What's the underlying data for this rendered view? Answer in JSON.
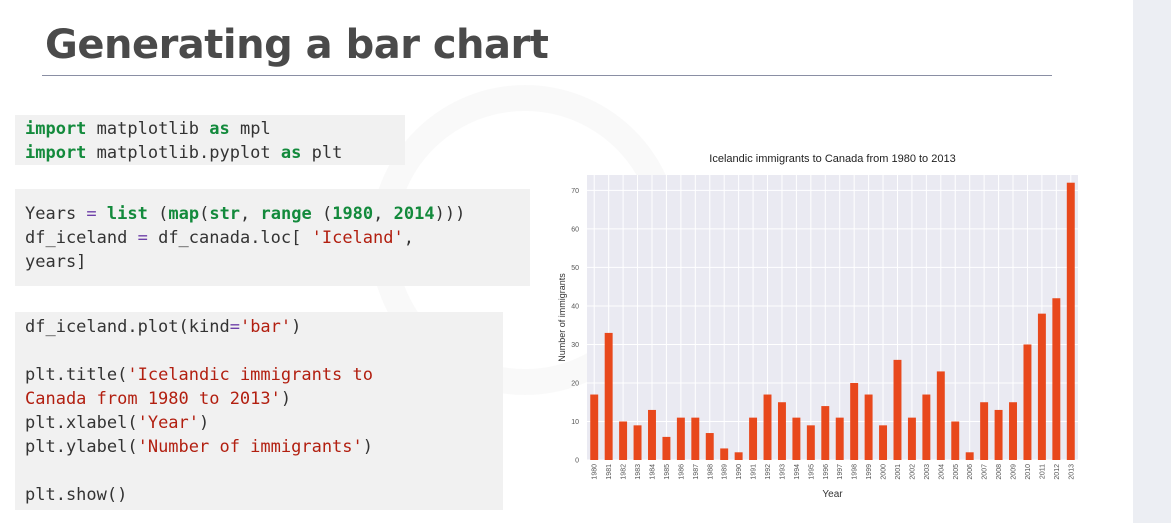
{
  "slide": {
    "title": "Generating a bar chart"
  },
  "code_blocks": {
    "imports": {
      "line1": {
        "kw1": "import",
        "mid": " matplotlib ",
        "kw2": "as",
        "end": " mpl"
      },
      "line2": {
        "kw1": "import",
        "mid": " matplotlib.pyplot ",
        "kw2": "as",
        "end": " plt"
      }
    },
    "data_prep": {
      "line1": {
        "p1": "Years ",
        "eq": "=",
        "sp1": " ",
        "fn_list": "list",
        "p2": " (",
        "fn_map": "map",
        "p3": "(",
        "fn_str": "str",
        "p4": ", ",
        "fn_range": "range",
        "p5": " (",
        "n1": "1980",
        "p6": ", ",
        "n2": "2014",
        "p7": ")))"
      },
      "line2": {
        "p1": "df_iceland ",
        "eq": "=",
        "p2": " df_canada.loc[ ",
        "s1": "'Iceland'",
        "p3": ","
      },
      "line3": {
        "p1": "years]"
      }
    },
    "plotting": {
      "line1": {
        "p1": "df_iceland.plot(kind",
        "eq": "=",
        "s1": "'bar'",
        "p2": ")"
      },
      "line3": {
        "p1": "plt.title(",
        "s1": "'Icelandic immigrants to"
      },
      "line4": {
        "s1": "Canada from 1980 to 2013'",
        "p1": ")"
      },
      "line5": {
        "p1": "plt.xlabel(",
        "s1": "'Year'",
        "p2": ")"
      },
      "line6": {
        "p1": "plt.ylabel(",
        "s1": "'Number of immigrants'",
        "p2": ")"
      },
      "line8": {
        "p1": "plt.show()"
      }
    }
  },
  "colors": {
    "bar": "#E8481C",
    "plot_background": "#EAEAF2",
    "grid": "#FFFFFF"
  },
  "chart_data": {
    "type": "bar",
    "title": "Icelandic immigrants to Canada from 1980 to 2013",
    "xlabel": "Year",
    "ylabel": "Number of immigrants",
    "categories": [
      "1980",
      "1981",
      "1982",
      "1983",
      "1984",
      "1985",
      "1986",
      "1987",
      "1988",
      "1989",
      "1990",
      "1991",
      "1992",
      "1993",
      "1994",
      "1995",
      "1996",
      "1997",
      "1998",
      "1999",
      "2000",
      "2001",
      "2002",
      "2003",
      "2004",
      "2005",
      "2006",
      "2007",
      "2008",
      "2009",
      "2010",
      "2011",
      "2012",
      "2013"
    ],
    "values": [
      17,
      33,
      10,
      9,
      13,
      6,
      11,
      11,
      7,
      3,
      2,
      11,
      17,
      15,
      11,
      9,
      14,
      11,
      20,
      17,
      9,
      26,
      11,
      17,
      23,
      10,
      2,
      15,
      13,
      15,
      30,
      38,
      42,
      72
    ],
    "ylim": [
      0,
      74
    ],
    "yticks": [
      0,
      10,
      20,
      30,
      40,
      50,
      60,
      70
    ],
    "grid": true,
    "legend": "none"
  }
}
